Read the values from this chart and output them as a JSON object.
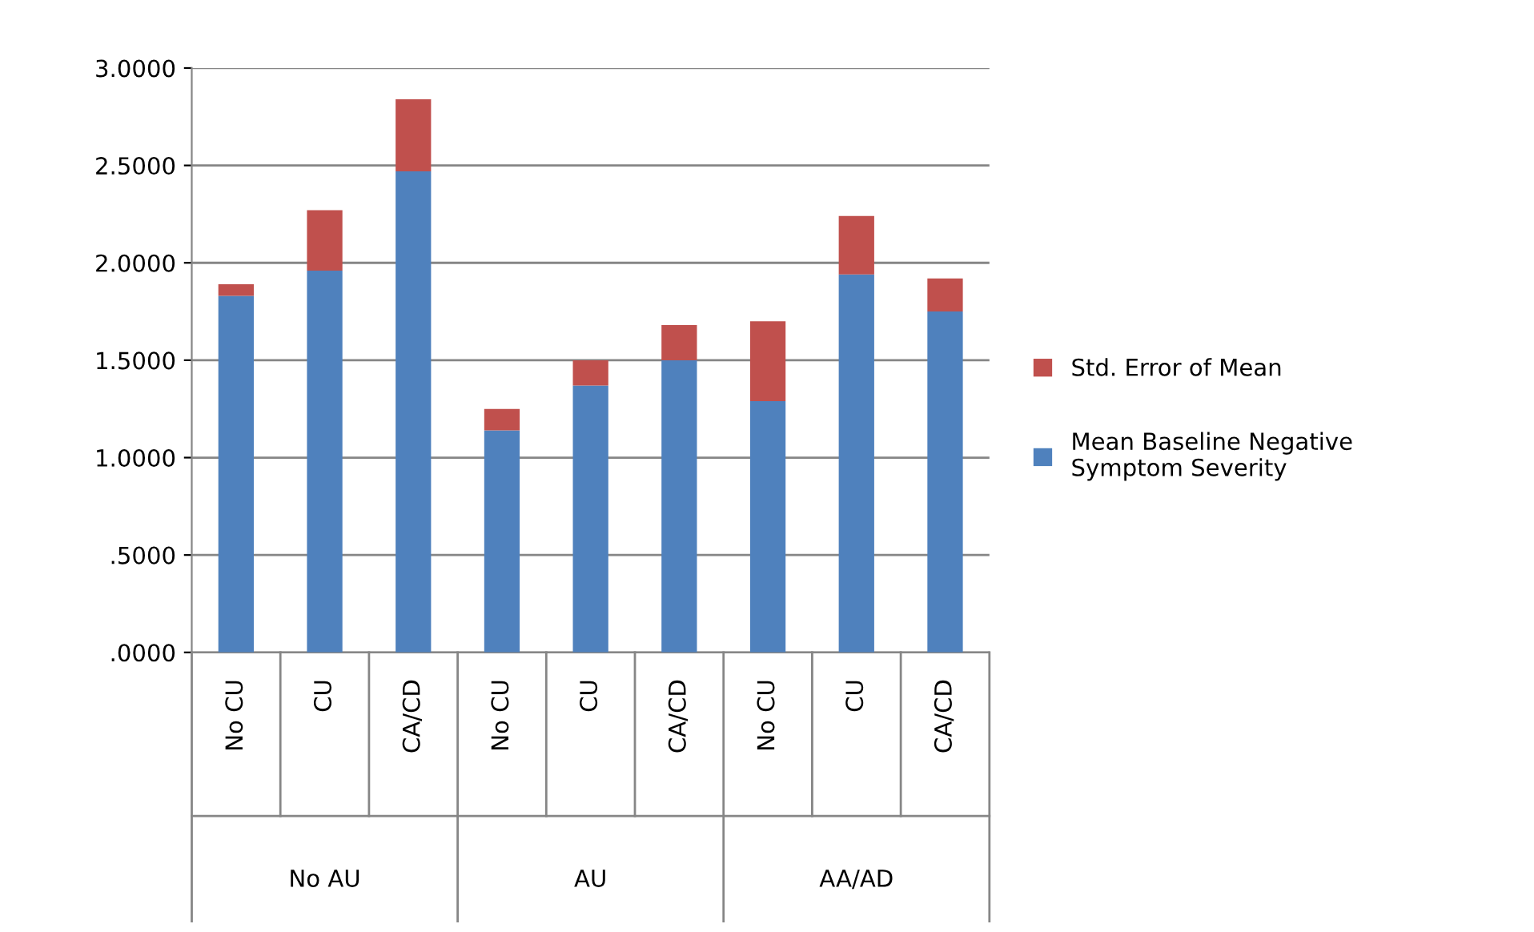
{
  "chart_data": {
    "type": "bar",
    "stacked": true,
    "categories": [
      "No CU",
      "CU",
      "CA/CD",
      "No CU",
      "CU",
      "CA/CD",
      "No CU",
      "CU",
      "CA/CD"
    ],
    "annotations": [
      "No AU",
      "AU",
      "AA/AD"
    ],
    "series": [
      {
        "name": "Mean Baseline Negative Symptom Severity",
        "color": "#4f81bd",
        "values": [
          1.83,
          1.96,
          2.47,
          1.14,
          1.37,
          1.5,
          1.29,
          1.94,
          1.75
        ]
      },
      {
        "name": "Std. Error of Mean",
        "color": "#c0504d",
        "values": [
          0.06,
          0.31,
          0.37,
          0.11,
          0.13,
          0.18,
          0.41,
          0.3,
          0.17
        ]
      }
    ],
    "ylim": [
      0,
      3
    ],
    "yticks": [
      {
        "value": 0,
        "label": ".0000"
      },
      {
        "value": 0.5,
        "label": ".5000"
      },
      {
        "value": 1,
        "label": "1.0000"
      },
      {
        "value": 1.5,
        "label": "1.5000"
      },
      {
        "value": 2,
        "label": "2.0000"
      },
      {
        "value": 2.5,
        "label": "2.5000"
      },
      {
        "value": 3,
        "label": "3.0000"
      }
    ],
    "grid": "y",
    "legend": "right"
  }
}
